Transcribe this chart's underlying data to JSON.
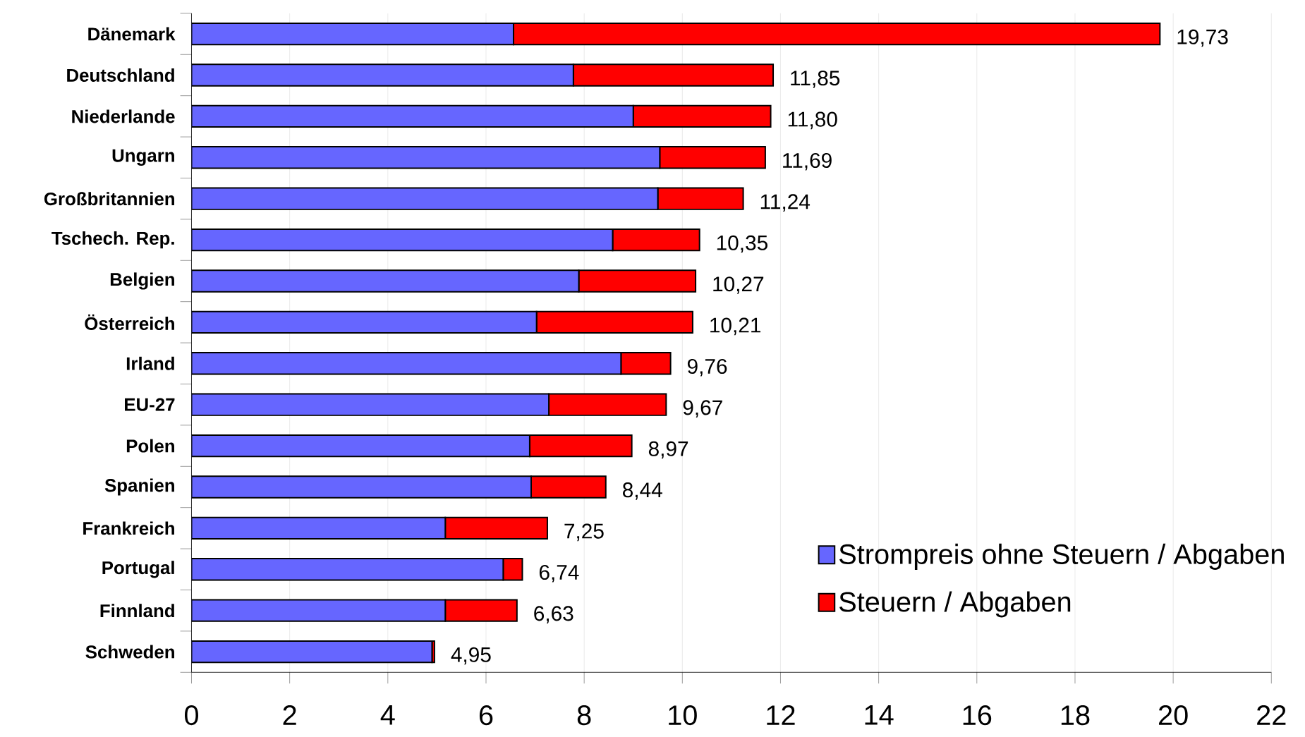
{
  "chart_data": {
    "type": "bar",
    "orientation": "horizontal",
    "stacked": true,
    "categories": [
      "Dänemark",
      "Deutschland",
      "Niederlande",
      "Ungarn",
      "Großbritannien",
      "Tschech. Rep.",
      "Belgien",
      "Österreich",
      "Irland",
      "EU-27",
      "Polen",
      "Spanien",
      "Frankreich",
      "Portugal",
      "Finnland",
      "Schweden"
    ],
    "series": [
      {
        "name": "Strompreis ohne Steuern / Abgaben",
        "color": "#6666ff",
        "values": [
          6.56,
          7.78,
          9.0,
          9.54,
          9.5,
          8.58,
          7.89,
          7.03,
          8.75,
          7.28,
          6.89,
          6.92,
          5.17,
          6.35,
          5.17,
          4.9
        ]
      },
      {
        "name": "Steuern / Abgaben",
        "color": "#ff0000",
        "values": [
          13.17,
          4.07,
          2.8,
          2.15,
          1.74,
          1.77,
          2.38,
          3.18,
          1.01,
          2.39,
          2.08,
          1.52,
          2.08,
          0.39,
          1.46,
          0.05
        ]
      }
    ],
    "totals": [
      "19,73",
      "11,85",
      "11,80",
      "11,69",
      "11,24",
      "10,35",
      "10,27",
      "10,21",
      "9,76",
      "9,67",
      "8,97",
      "8,44",
      "7,25",
      "6,74",
      "6,63",
      "4,95"
    ],
    "xlim": [
      0,
      22
    ],
    "xticks": [
      0,
      2,
      4,
      6,
      8,
      10,
      12,
      14,
      16,
      18,
      20,
      22
    ],
    "grid": "x",
    "legend": "bottom right"
  }
}
